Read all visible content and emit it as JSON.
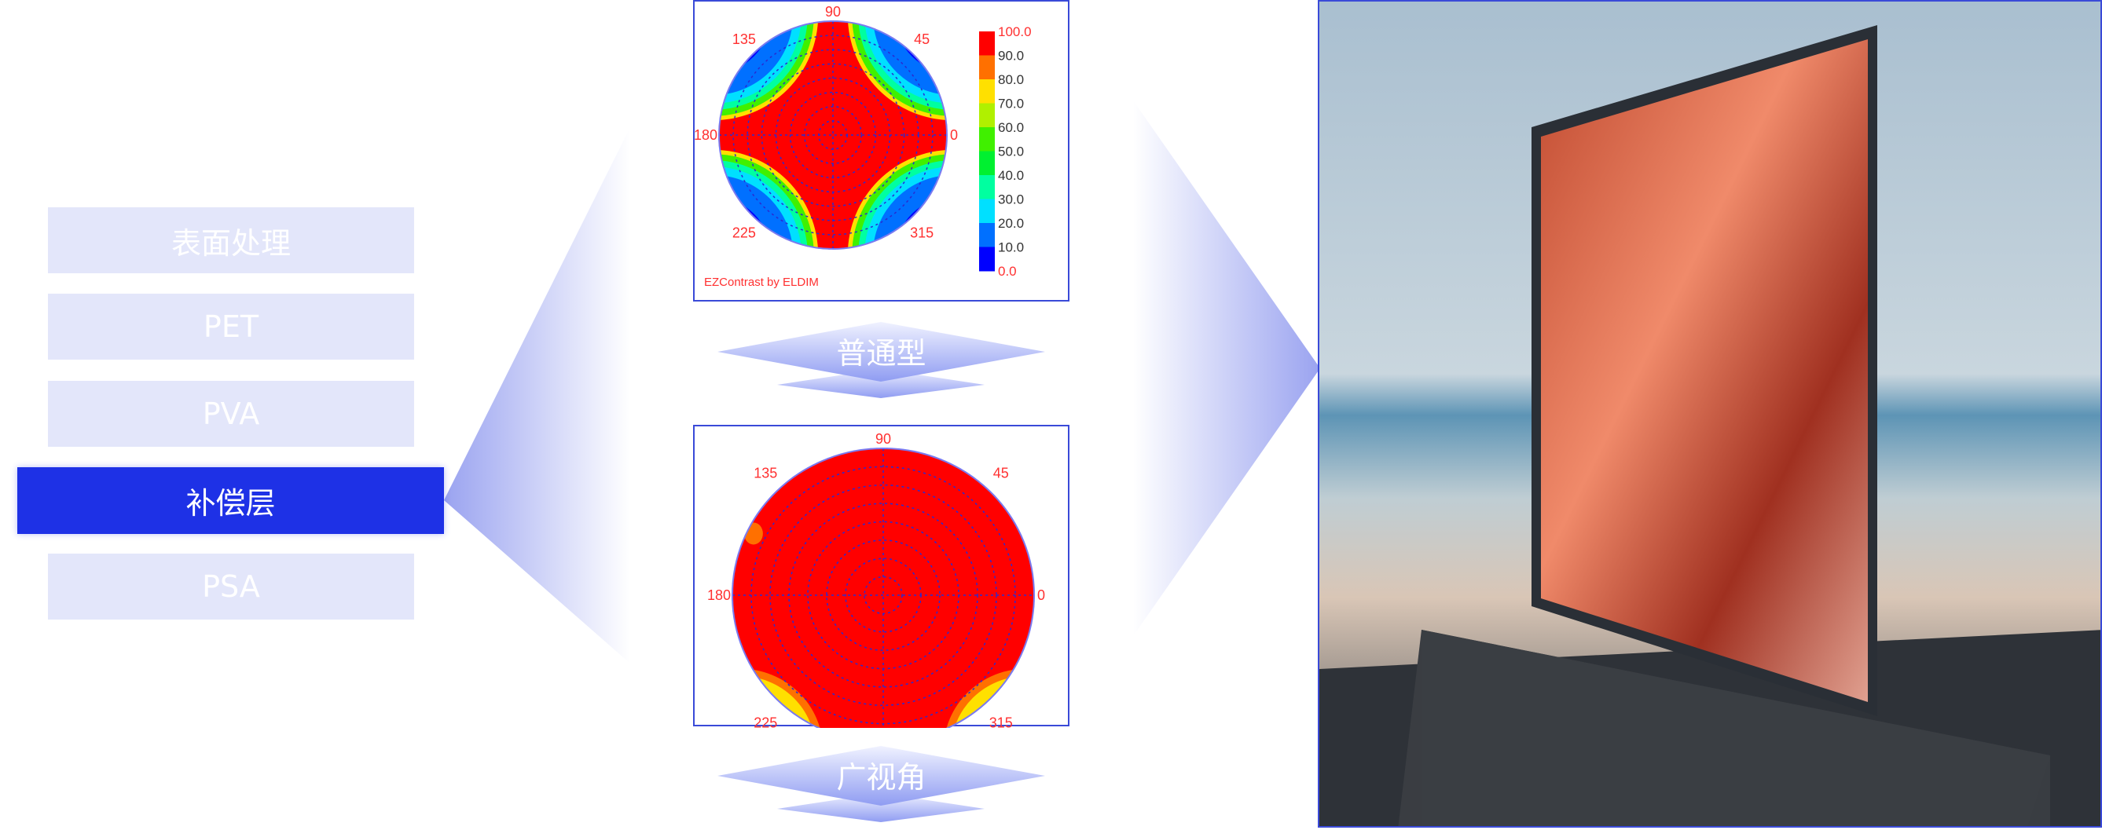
{
  "layers": [
    {
      "label": "表面处理",
      "active": false
    },
    {
      "label": "PET",
      "active": false
    },
    {
      "label": "PVA",
      "active": false
    },
    {
      "label": "补偿层",
      "active": true
    },
    {
      "label": "PSA",
      "active": false
    }
  ],
  "charts": [
    {
      "angles": [
        "90",
        "135",
        "45",
        "180",
        "0",
        "225",
        "315"
      ],
      "credit": "EZContrast by ELDIM",
      "colorbar": [
        "100.0",
        "90.0",
        "80.0",
        "70.0",
        "60.0",
        "50.0",
        "40.0",
        "30.0",
        "20.0",
        "10.0",
        "0.0"
      ],
      "caption": "普通型"
    },
    {
      "angles": [
        "90",
        "135",
        "45",
        "180",
        "0",
        "225",
        "315"
      ],
      "caption": "广视角"
    }
  ],
  "colors": {
    "accent": "#1e31e6",
    "inactive": "#e3e6fa",
    "border": "#3a4ad8"
  },
  "colorbar_colors": [
    "#ff0000",
    "#ff7000",
    "#ffe000",
    "#b0f000",
    "#40f000",
    "#00f030",
    "#00ffa0",
    "#00e0ff",
    "#0070ff",
    "#0000ff"
  ]
}
